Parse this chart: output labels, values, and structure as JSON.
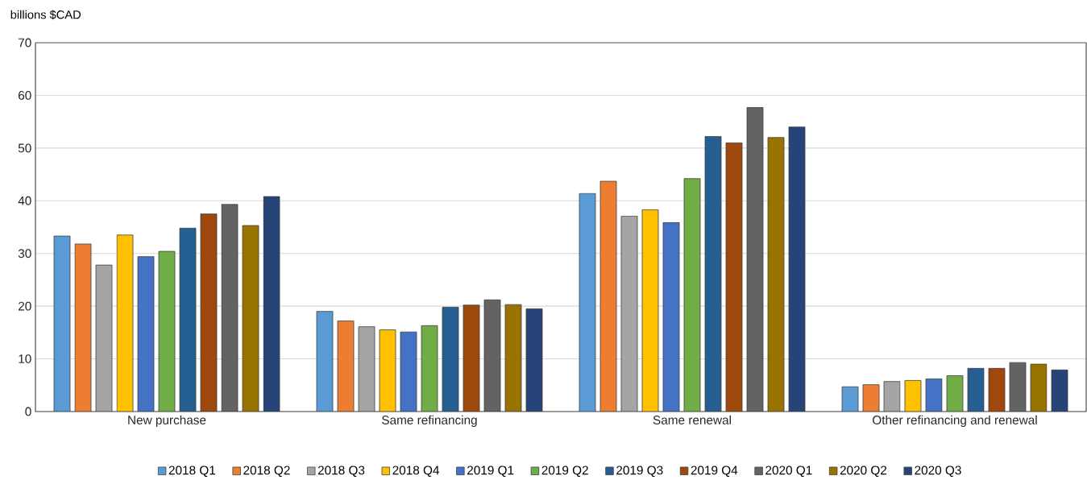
{
  "chart_data": {
    "type": "bar",
    "ylabel": "billions $CAD",
    "categories": [
      "New purchase",
      "Same refinancing",
      "Same renewal",
      "Other refinancing and renewal"
    ],
    "series": [
      {
        "name": "2018 Q1",
        "color": "#5b9bd5",
        "values": [
          33.3,
          19.0,
          41.4,
          4.7
        ]
      },
      {
        "name": "2018 Q2",
        "color": "#ed7d31",
        "values": [
          31.8,
          17.2,
          43.7,
          5.1
        ]
      },
      {
        "name": "2018 Q3",
        "color": "#a5a5a5",
        "values": [
          27.8,
          16.1,
          37.1,
          5.7
        ]
      },
      {
        "name": "2018 Q4",
        "color": "#ffc000",
        "values": [
          33.5,
          15.5,
          38.3,
          5.9
        ]
      },
      {
        "name": "2019 Q1",
        "color": "#4472c4",
        "values": [
          29.4,
          15.1,
          35.9,
          6.2
        ]
      },
      {
        "name": "2019 Q2",
        "color": "#70ad47",
        "values": [
          30.4,
          16.3,
          44.2,
          6.8
        ]
      },
      {
        "name": "2019 Q3",
        "color": "#255e91",
        "values": [
          34.8,
          19.8,
          52.2,
          8.2
        ]
      },
      {
        "name": "2019 Q4",
        "color": "#9e480e",
        "values": [
          37.5,
          20.2,
          51.0,
          8.2
        ]
      },
      {
        "name": "2020 Q1",
        "color": "#636363",
        "values": [
          39.3,
          21.2,
          57.7,
          9.3
        ]
      },
      {
        "name": "2020 Q2",
        "color": "#997300",
        "values": [
          35.3,
          20.3,
          52.0,
          9.0
        ]
      },
      {
        "name": "2020 Q3",
        "color": "#264478",
        "values": [
          40.8,
          19.5,
          54.0,
          7.9
        ]
      }
    ],
    "ylim": [
      0,
      70
    ],
    "yticks": [
      0,
      10,
      20,
      30,
      40,
      50,
      60,
      70
    ],
    "grid": "y",
    "legend": "bottom"
  }
}
